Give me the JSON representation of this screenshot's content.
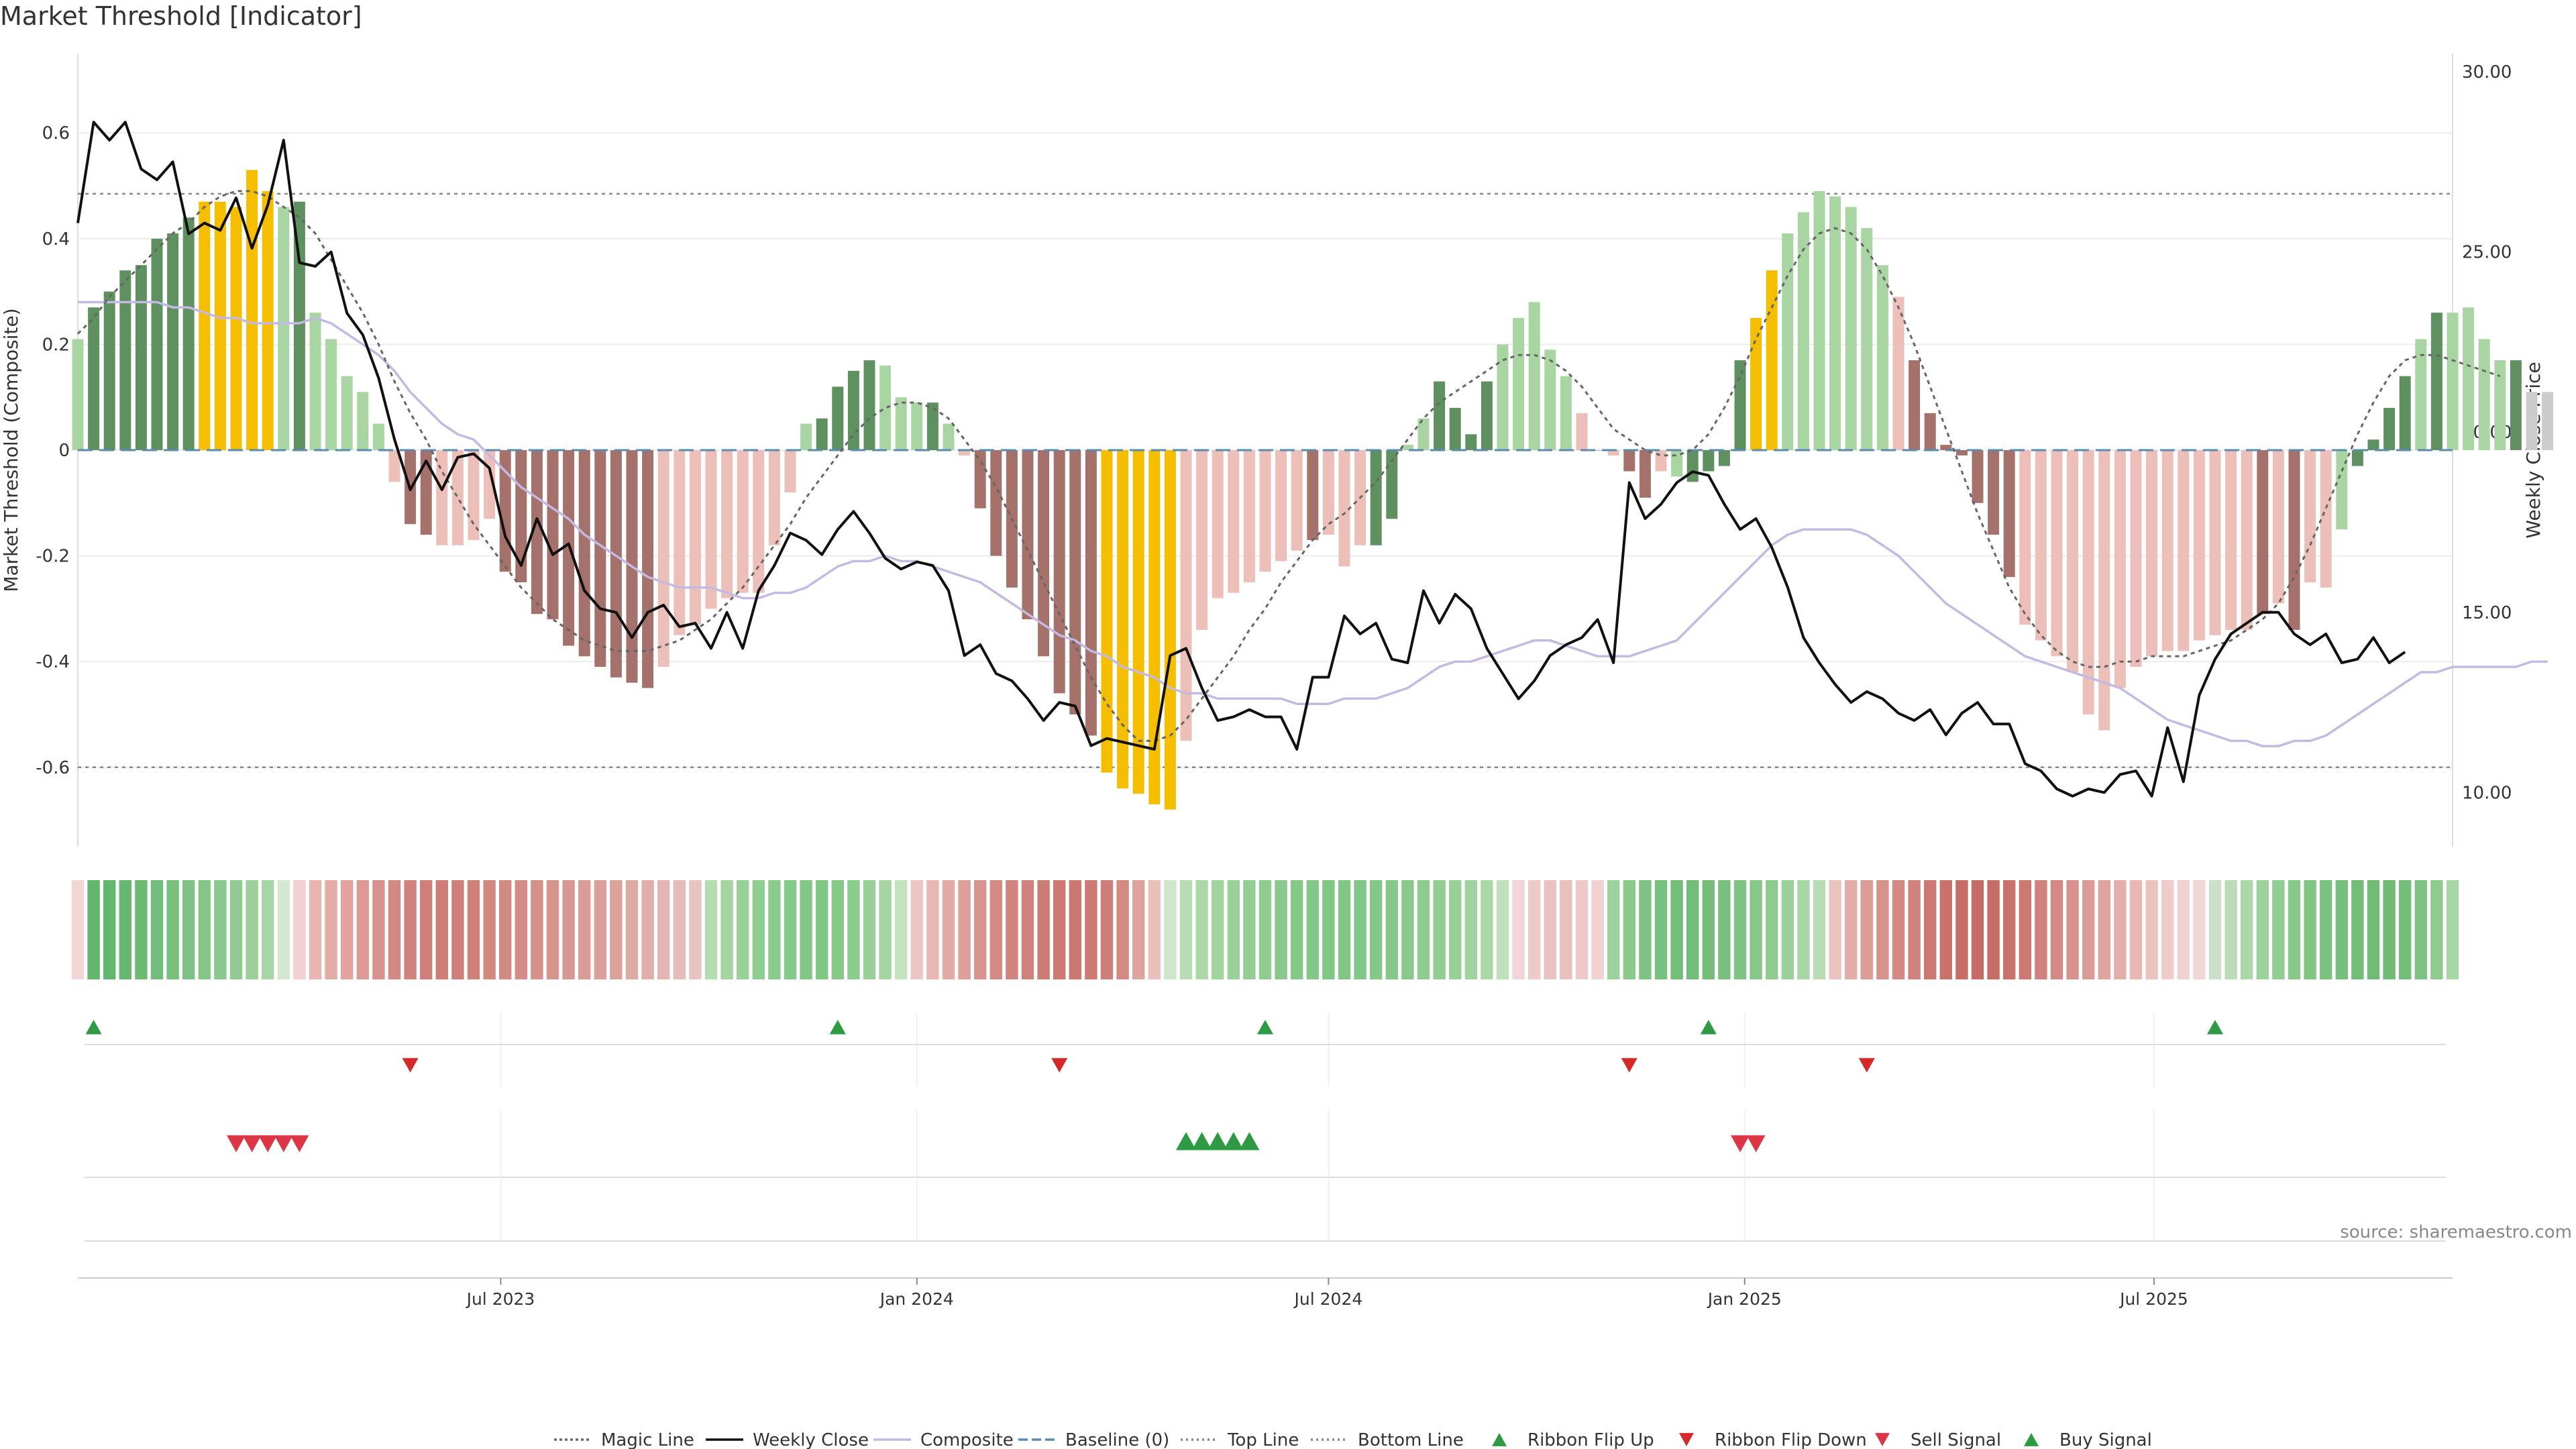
{
  "chart_data": {
    "type": "bar",
    "title": "Market Threshold [Indicator]",
    "source": "source: sharemaestro.com",
    "ylabel": "Market Threshold (Composite)",
    "y2label": "Weekly Close Price",
    "ylim": [
      -0.75,
      0.75
    ],
    "y2lim": [
      8.5,
      30.5
    ],
    "yticks": [
      -0.6,
      -0.4,
      -0.2,
      0,
      0.2,
      0.4,
      0.6
    ],
    "yticklabels": [
      "-0.6",
      "-0.4",
      "-0.2",
      "0",
      "0.2",
      "0.4",
      "0.6"
    ],
    "y2ticks": [
      10,
      15,
      20,
      25,
      30
    ],
    "y2ticklabels": [
      "10.00",
      "15.00",
      "20.00",
      "25.00",
      "30.00"
    ],
    "x_range": [
      "2022-12-26",
      "2025-11-10"
    ],
    "xticks": [
      "2023-07-01",
      "2024-01-01",
      "2024-07-01",
      "2025-01-01",
      "2025-07-01"
    ],
    "xticklabels": [
      "Jul 2023",
      "Jan 2024",
      "Jul 2024",
      "Jan 2025",
      "Jul 2025"
    ],
    "top_line": 0.485,
    "bottom_line": -0.6,
    "start_week": "2022-12-26",
    "histogram": [
      0.21,
      0.27,
      0.3,
      0.34,
      0.35,
      0.4,
      0.41,
      0.44,
      0.47,
      0.47,
      0.46,
      0.53,
      0.49,
      0.46,
      0.47,
      0.26,
      0.21,
      0.14,
      0.11,
      0.05,
      -0.06,
      -0.14,
      -0.16,
      -0.18,
      -0.18,
      -0.17,
      -0.13,
      -0.23,
      -0.25,
      -0.31,
      -0.32,
      -0.37,
      -0.39,
      -0.41,
      -0.43,
      -0.44,
      -0.45,
      -0.41,
      -0.35,
      -0.33,
      -0.3,
      -0.28,
      -0.27,
      -0.27,
      -0.18,
      -0.08,
      0.05,
      0.06,
      0.12,
      0.15,
      0.17,
      0.16,
      0.1,
      0.09,
      0.09,
      0.05,
      -0.01,
      -0.11,
      -0.2,
      -0.26,
      -0.32,
      -0.39,
      -0.46,
      -0.5,
      -0.54,
      -0.61,
      -0.64,
      -0.65,
      -0.67,
      -0.68,
      -0.55,
      -0.34,
      -0.28,
      -0.27,
      -0.25,
      -0.23,
      -0.21,
      -0.19,
      -0.17,
      -0.16,
      -0.22,
      -0.18,
      -0.18,
      -0.13,
      0.01,
      0.06,
      0.13,
      0.08,
      0.03,
      0.13,
      0.2,
      0.25,
      0.28,
      0.19,
      0.14,
      0.07,
      0.0,
      -0.01,
      -0.04,
      -0.09,
      -0.04,
      -0.05,
      -0.06,
      -0.04,
      -0.03,
      0.17,
      0.25,
      0.34,
      0.41,
      0.45,
      0.49,
      0.48,
      0.46,
      0.42,
      0.35,
      0.29,
      0.17,
      0.07,
      0.01,
      -0.01,
      -0.1,
      -0.16,
      -0.24,
      -0.33,
      -0.36,
      -0.39,
      -0.42,
      -0.5,
      -0.53,
      -0.45,
      -0.41,
      -0.39,
      -0.38,
      -0.38,
      -0.36,
      -0.35,
      -0.34,
      -0.34,
      -0.31,
      -0.29,
      -0.34,
      -0.25,
      -0.26,
      -0.15,
      -0.03,
      0.02,
      0.08,
      0.14,
      0.21,
      0.26,
      0.26,
      0.27,
      0.21,
      0.17,
      0.17,
      0.11,
      0.11
    ],
    "bar_colors": {
      "pos_strong": "#5f9160",
      "pos_weak": "#a8d5a2",
      "neg_strong": "#a5716b",
      "neg_weak": "#ecbfb9",
      "extreme": "#f6be00"
    },
    "bar_color_codes": [
      "pw",
      "ps",
      "ps",
      "ps",
      "ps",
      "ps",
      "ps",
      "ps",
      "ex",
      "ex",
      "ex",
      "ex",
      "ex",
      "pw",
      "ps",
      "pw",
      "pw",
      "pw",
      "pw",
      "pw",
      "nw",
      "ns",
      "ns",
      "nw",
      "nw",
      "nw",
      "nw",
      "ns",
      "ns",
      "ns",
      "ns",
      "ns",
      "ns",
      "ns",
      "ns",
      "ns",
      "ns",
      "nw",
      "nw",
      "nw",
      "nw",
      "nw",
      "nw",
      "nw",
      "nw",
      "nw",
      "pw",
      "ps",
      "ps",
      "ps",
      "ps",
      "pw",
      "pw",
      "pw",
      "ps",
      "pw",
      "nw",
      "ns",
      "ns",
      "ns",
      "ns",
      "ns",
      "ns",
      "ns",
      "ns",
      "ex",
      "ex",
      "ex",
      "ex",
      "ex",
      "nw",
      "nw",
      "nw",
      "nw",
      "nw",
      "nw",
      "nw",
      "nw",
      "ns",
      "nw",
      "nw",
      "nw",
      "ps",
      "ps",
      "pw",
      "pw",
      "ps",
      "ps",
      "ps",
      "ps",
      "pw",
      "pw",
      "pw",
      "pw",
      "pw",
      "nw",
      "ns",
      "nw",
      "ns",
      "ns",
      "nw",
      "pw",
      "ps",
      "ps",
      "ps",
      "ps",
      "ex",
      "ex",
      "pw",
      "pw",
      "pw",
      "pw",
      "pw",
      "pw",
      "pw",
      "nw",
      "ns",
      "ns",
      "ns",
      "ns",
      "ns",
      "ns",
      "ns",
      "nw",
      "nw",
      "nw",
      "nw",
      "nw",
      "nw",
      "nw",
      "nw",
      "nw",
      "nw",
      "nw",
      "nw",
      "nw",
      "nw",
      "nw",
      "ns",
      "nw",
      "ns",
      "nw",
      "nw",
      "pw",
      "ps",
      "ps",
      "ps",
      "ps",
      "pw",
      "ps",
      "pw",
      "pw",
      "pw",
      "pw",
      "ps"
    ],
    "magic_line": [
      0.22,
      0.25,
      0.29,
      0.32,
      0.35,
      0.38,
      0.41,
      0.43,
      0.46,
      0.48,
      0.49,
      0.49,
      0.48,
      0.46,
      0.44,
      0.41,
      0.36,
      0.31,
      0.26,
      0.2,
      0.13,
      0.07,
      0.02,
      -0.04,
      -0.09,
      -0.14,
      -0.18,
      -0.22,
      -0.26,
      -0.29,
      -0.32,
      -0.34,
      -0.36,
      -0.37,
      -0.38,
      -0.38,
      -0.38,
      -0.37,
      -0.36,
      -0.34,
      -0.32,
      -0.29,
      -0.26,
      -0.22,
      -0.18,
      -0.14,
      -0.09,
      -0.05,
      -0.01,
      0.03,
      0.06,
      0.08,
      0.09,
      0.09,
      0.08,
      0.06,
      0.02,
      -0.02,
      -0.07,
      -0.13,
      -0.19,
      -0.25,
      -0.31,
      -0.37,
      -0.43,
      -0.48,
      -0.52,
      -0.55,
      -0.55,
      -0.54,
      -0.51,
      -0.47,
      -0.43,
      -0.39,
      -0.34,
      -0.3,
      -0.25,
      -0.21,
      -0.17,
      -0.14,
      -0.12,
      -0.09,
      -0.06,
      -0.02,
      0.02,
      0.06,
      0.09,
      0.11,
      0.13,
      0.15,
      0.17,
      0.18,
      0.18,
      0.17,
      0.15,
      0.12,
      0.08,
      0.04,
      0.02,
      0.0,
      -0.01,
      -0.01,
      0.0,
      0.03,
      0.08,
      0.14,
      0.21,
      0.27,
      0.33,
      0.38,
      0.41,
      0.42,
      0.41,
      0.38,
      0.33,
      0.27,
      0.2,
      0.12,
      0.04,
      -0.04,
      -0.12,
      -0.19,
      -0.26,
      -0.31,
      -0.35,
      -0.38,
      -0.4,
      -0.41,
      -0.41,
      -0.4,
      -0.4,
      -0.39,
      -0.39,
      -0.39,
      -0.38,
      -0.37,
      -0.36,
      -0.34,
      -0.32,
      -0.29,
      -0.24,
      -0.18,
      -0.11,
      -0.04,
      0.03,
      0.09,
      0.14,
      0.17,
      0.18,
      0.18,
      0.17,
      0.16,
      0.15,
      0.14
    ],
    "composite": [
      0.28,
      0.28,
      0.28,
      0.28,
      0.28,
      0.28,
      0.27,
      0.27,
      0.26,
      0.25,
      0.25,
      0.24,
      0.24,
      0.24,
      0.24,
      0.25,
      0.24,
      0.22,
      0.2,
      0.18,
      0.15,
      0.11,
      0.08,
      0.05,
      0.03,
      0.02,
      -0.01,
      -0.04,
      -0.07,
      -0.09,
      -0.11,
      -0.13,
      -0.16,
      -0.18,
      -0.2,
      -0.22,
      -0.24,
      -0.25,
      -0.26,
      -0.26,
      -0.26,
      -0.27,
      -0.28,
      -0.28,
      -0.27,
      -0.27,
      -0.26,
      -0.24,
      -0.22,
      -0.21,
      -0.21,
      -0.2,
      -0.21,
      -0.21,
      -0.22,
      -0.23,
      -0.24,
      -0.25,
      -0.27,
      -0.29,
      -0.31,
      -0.33,
      -0.35,
      -0.36,
      -0.38,
      -0.39,
      -0.41,
      -0.42,
      -0.43,
      -0.45,
      -0.46,
      -0.46,
      -0.47,
      -0.47,
      -0.47,
      -0.47,
      -0.47,
      -0.48,
      -0.48,
      -0.48,
      -0.47,
      -0.47,
      -0.47,
      -0.46,
      -0.45,
      -0.43,
      -0.41,
      -0.4,
      -0.4,
      -0.39,
      -0.38,
      -0.37,
      -0.36,
      -0.36,
      -0.37,
      -0.38,
      -0.39,
      -0.39,
      -0.39,
      -0.38,
      -0.37,
      -0.36,
      -0.33,
      -0.3,
      -0.27,
      -0.24,
      -0.21,
      -0.18,
      -0.16,
      -0.15,
      -0.15,
      -0.15,
      -0.15,
      -0.16,
      -0.18,
      -0.2,
      -0.23,
      -0.26,
      -0.29,
      -0.31,
      -0.33,
      -0.35,
      -0.37,
      -0.39,
      -0.4,
      -0.41,
      -0.42,
      -0.43,
      -0.44,
      -0.45,
      -0.47,
      -0.49,
      -0.51,
      -0.52,
      -0.53,
      -0.54,
      -0.55,
      -0.55,
      -0.56,
      -0.56,
      -0.55,
      -0.55,
      -0.54,
      -0.52,
      -0.5,
      -0.48,
      -0.46,
      -0.44,
      -0.42,
      -0.42,
      -0.41,
      -0.41,
      -0.41,
      -0.41,
      -0.41,
      -0.4,
      -0.4
    ],
    "weekly_close": [
      25.8,
      28.6,
      28.1,
      28.6,
      27.3,
      27.0,
      27.5,
      25.5,
      25.8,
      25.6,
      26.5,
      25.1,
      26.3,
      28.1,
      24.7,
      24.6,
      25.0,
      23.3,
      22.7,
      21.5,
      19.8,
      18.4,
      19.2,
      18.4,
      19.3,
      19.4,
      19.0,
      17.1,
      16.3,
      17.6,
      16.6,
      16.9,
      15.6,
      15.1,
      15.0,
      14.3,
      15.0,
      15.2,
      14.6,
      14.7,
      14.0,
      15.0,
      14.0,
      15.6,
      16.3,
      17.2,
      17.0,
      16.6,
      17.3,
      17.8,
      17.2,
      16.5,
      16.2,
      16.4,
      16.3,
      15.6,
      13.8,
      14.1,
      13.3,
      13.1,
      12.6,
      12.0,
      12.5,
      12.4,
      11.3,
      11.5,
      11.4,
      11.3,
      11.2,
      13.8,
      14.0,
      12.9,
      12.0,
      12.1,
      12.3,
      12.1,
      12.1,
      11.2,
      13.2,
      13.2,
      14.9,
      14.4,
      14.7,
      13.7,
      13.6,
      15.6,
      14.7,
      15.5,
      15.1,
      14.0,
      13.3,
      12.6,
      13.1,
      13.8,
      14.1,
      14.3,
      14.8,
      13.6,
      18.6,
      17.6,
      18.0,
      18.6,
      18.9,
      18.8,
      18.0,
      17.3,
      17.6,
      16.8,
      15.7,
      14.3,
      13.6,
      13.0,
      12.5,
      12.8,
      12.6,
      12.2,
      12.0,
      12.3,
      11.6,
      12.2,
      12.5,
      11.9,
      11.9,
      10.8,
      10.6,
      10.1,
      9.9,
      10.1,
      10.0,
      10.5,
      10.6,
      9.9,
      11.8,
      10.3,
      12.7,
      13.7,
      14.4,
      14.7,
      15.0,
      15.0,
      14.4,
      14.1,
      14.4,
      13.6,
      13.7,
      14.3,
      13.6,
      13.9
    ],
    "ribbon": [
      "#f2d6d6",
      "#63b66e",
      "#63b66e",
      "#66b770",
      "#6cba74",
      "#72bd79",
      "#78c07e",
      "#7ec383",
      "#84c688",
      "#8ac98d",
      "#90cc92",
      "#9bd09b",
      "#a7d5a5",
      "#d4e8cf",
      "#f1d1d1",
      "#e8b5b0",
      "#e4aca7",
      "#e0a39e",
      "#dc9a95",
      "#d8928d",
      "#d48a84",
      "#d0827c",
      "#cf7f79",
      "#ce7d77",
      "#cf7f79",
      "#d08279",
      "#d2877f",
      "#d38a83",
      "#d48d86",
      "#d59089",
      "#d7948d",
      "#d89891",
      "#da9c95",
      "#dba099",
      "#dca39d",
      "#deaaa4",
      "#e0afa9",
      "#e3b6b1",
      "#e6bcb8",
      "#e9c3c0",
      "#b6dcb2",
      "#a4d5a1",
      "#98d097",
      "#8fcd90",
      "#8acb8c",
      "#86c989",
      "#82c786",
      "#80c685",
      "#86c989",
      "#8ccc8e",
      "#98d098",
      "#a4d5a2",
      "#c5e2bf",
      "#ecc6c3",
      "#e8b7b3",
      "#e2aaa5",
      "#dd9f99",
      "#d8948e",
      "#d48a84",
      "#d18580",
      "#cf817b",
      "#cd7c76",
      "#cc7973",
      "#cc7872",
      "#cd7a74",
      "#cf7f79",
      "#d48a84",
      "#dfa39d",
      "#ebc0bc",
      "#cfe6cb",
      "#b8ddb4",
      "#acd8a9",
      "#a2d4a0",
      "#9ad19a",
      "#94ce94",
      "#8ecc8f",
      "#8ac98b",
      "#86c888",
      "#84c786",
      "#82c685",
      "#82c685",
      "#82c685",
      "#84c786",
      "#86c888",
      "#8ac98b",
      "#8ecb8f",
      "#92cd92",
      "#98d098",
      "#a0d39e",
      "#aad8a7",
      "#c0dfbb",
      "#f2d6d6",
      "#edcac7",
      "#eac3c0",
      "#e8c0bc",
      "#eccac7",
      "#f0d3d1",
      "#9ed29d",
      "#8acb8c",
      "#7ec383",
      "#78c07e",
      "#74be7a",
      "#72bd79",
      "#74be7a",
      "#78c07e",
      "#7ec383",
      "#86c888",
      "#8ecb8f",
      "#9ad19a",
      "#a8d6a6",
      "#b8ddb4",
      "#eac3c0",
      "#e2aca7",
      "#dc9d97",
      "#d8928c",
      "#d48a84",
      "#d0827c",
      "#cc7973",
      "#c9726c",
      "#c76d67",
      "#c66b65",
      "#c76d67",
      "#c9726c",
      "#cc7973",
      "#d0827c",
      "#d48a84",
      "#d8928d",
      "#dc9b96",
      "#e0a4a0",
      "#e4aeaa",
      "#e8b8b4",
      "#ecc2bf",
      "#efcbc9",
      "#f1d2d0",
      "#f2d6d5",
      "#ccdfc8",
      "#bcdcb8",
      "#acd8a9",
      "#9ed29d",
      "#92cd92",
      "#88c98a",
      "#80c584",
      "#7ac280",
      "#76bf7c",
      "#72bd79",
      "#70bc77",
      "#70bc77",
      "#74be7a",
      "#7ec383",
      "#8ecb8f",
      "#a8d6a6"
    ],
    "ribbon_flip_up": [
      "2023-01-02",
      "2023-11-27",
      "2024-06-03",
      "2024-12-16",
      "2025-07-28"
    ],
    "ribbon_flip_down": [
      "2023-05-22",
      "2024-03-04",
      "2024-11-11",
      "2025-02-24"
    ],
    "sell_signal": [
      "2023-03-06",
      "2023-03-13",
      "2023-03-20",
      "2023-03-27",
      "2023-04-03",
      "2024-12-30",
      "2025-01-06"
    ],
    "buy_signal": [
      "2024-04-29",
      "2024-05-06",
      "2024-05-13",
      "2024-05-20",
      "2024-05-27"
    ],
    "legend": [
      "Magic Line",
      "Weekly Close",
      "Composite",
      "Baseline (0)",
      "Top Line",
      "Bottom Line",
      "Ribbon Flip Up",
      "Ribbon Flip Down",
      "Sell Signal",
      "Buy Signal"
    ],
    "legend_placement": "bottom-center",
    "series_colors": {
      "magic_line": "#666666",
      "weekly_close": "#111111",
      "composite": "#c3b9e2",
      "baseline": "#5b8bb0",
      "ribbon_flip_up": "#2e9a44",
      "ribbon_flip_down": "#d52a2a",
      "sell_signal": "#dc3545",
      "buy_signal": "#2e9a44"
    },
    "grid": true
  }
}
